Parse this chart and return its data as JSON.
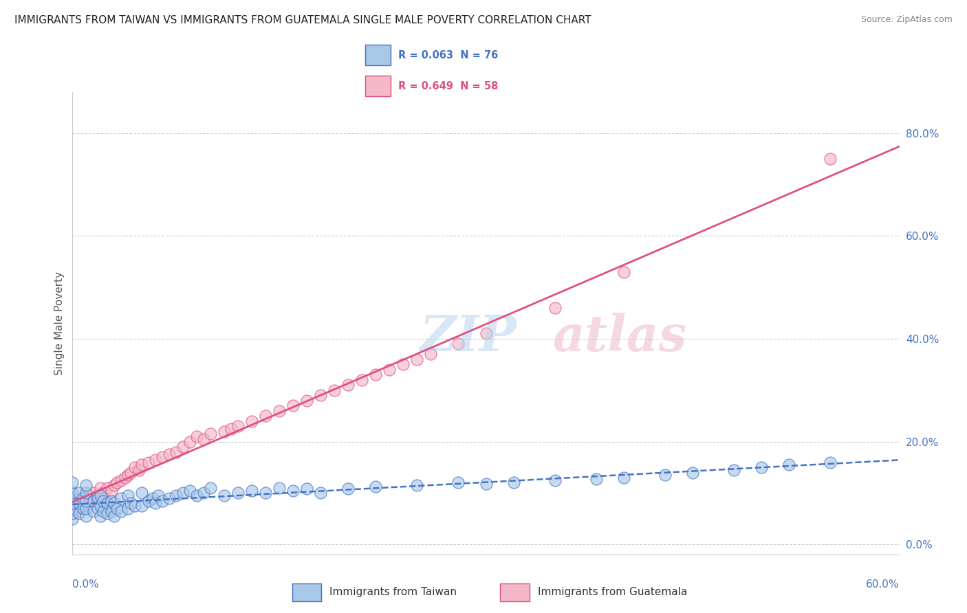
{
  "title": "IMMIGRANTS FROM TAIWAN VS IMMIGRANTS FROM GUATEMALA SINGLE MALE POVERTY CORRELATION CHART",
  "source": "Source: ZipAtlas.com",
  "ylabel": "Single Male Poverty",
  "ylabel_right_values": [
    0.0,
    0.2,
    0.4,
    0.6,
    0.8
  ],
  "xmin": 0.0,
  "xmax": 0.6,
  "ymin": -0.02,
  "ymax": 0.88,
  "taiwan_color": "#a8c8e8",
  "taiwan_color_dark": "#4472c4",
  "guatemala_color": "#f4b8c8",
  "guatemala_color_dark": "#e05080",
  "legend_label_taiwan": "R = 0.063  N = 76",
  "legend_label_guatemala": "R = 0.649  N = 58",
  "legend_bottom_taiwan": "Immigrants from Taiwan",
  "legend_bottom_guatemala": "Immigrants from Guatemala",
  "grid_color": "#cccccc",
  "background_color": "#ffffff",
  "taiwan_x": [
    0.0,
    0.0,
    0.0,
    0.0,
    0.0,
    0.0,
    0.0,
    0.005,
    0.005,
    0.005,
    0.008,
    0.008,
    0.01,
    0.01,
    0.01,
    0.01,
    0.01,
    0.015,
    0.015,
    0.018,
    0.018,
    0.02,
    0.02,
    0.02,
    0.022,
    0.022,
    0.025,
    0.025,
    0.028,
    0.028,
    0.03,
    0.03,
    0.032,
    0.035,
    0.035,
    0.04,
    0.04,
    0.042,
    0.045,
    0.05,
    0.05,
    0.055,
    0.058,
    0.06,
    0.062,
    0.065,
    0.07,
    0.075,
    0.08,
    0.085,
    0.09,
    0.095,
    0.1,
    0.11,
    0.12,
    0.13,
    0.14,
    0.15,
    0.16,
    0.17,
    0.18,
    0.2,
    0.22,
    0.25,
    0.28,
    0.3,
    0.32,
    0.35,
    0.38,
    0.4,
    0.43,
    0.45,
    0.48,
    0.5,
    0.52,
    0.55
  ],
  "taiwan_y": [
    0.05,
    0.06,
    0.07,
    0.08,
    0.09,
    0.1,
    0.12,
    0.06,
    0.08,
    0.1,
    0.07,
    0.09,
    0.055,
    0.07,
    0.085,
    0.1,
    0.115,
    0.065,
    0.085,
    0.07,
    0.09,
    0.055,
    0.075,
    0.095,
    0.065,
    0.085,
    0.06,
    0.08,
    0.065,
    0.085,
    0.055,
    0.08,
    0.07,
    0.065,
    0.09,
    0.07,
    0.095,
    0.08,
    0.075,
    0.075,
    0.1,
    0.085,
    0.09,
    0.08,
    0.095,
    0.085,
    0.09,
    0.095,
    0.1,
    0.105,
    0.095,
    0.1,
    0.11,
    0.095,
    0.1,
    0.105,
    0.1,
    0.11,
    0.105,
    0.108,
    0.1,
    0.108,
    0.112,
    0.115,
    0.12,
    0.118,
    0.12,
    0.125,
    0.128,
    0.13,
    0.135,
    0.14,
    0.145,
    0.15,
    0.155,
    0.16
  ],
  "guatemala_x": [
    0.0,
    0.0,
    0.002,
    0.005,
    0.005,
    0.008,
    0.01,
    0.01,
    0.012,
    0.015,
    0.015,
    0.018,
    0.02,
    0.02,
    0.022,
    0.025,
    0.028,
    0.03,
    0.032,
    0.035,
    0.038,
    0.04,
    0.042,
    0.045,
    0.048,
    0.05,
    0.055,
    0.06,
    0.065,
    0.07,
    0.075,
    0.08,
    0.085,
    0.09,
    0.095,
    0.1,
    0.11,
    0.115,
    0.12,
    0.13,
    0.14,
    0.15,
    0.16,
    0.17,
    0.18,
    0.19,
    0.2,
    0.21,
    0.22,
    0.23,
    0.24,
    0.25,
    0.26,
    0.28,
    0.3,
    0.35,
    0.4,
    0.55
  ],
  "guatemala_y": [
    0.06,
    0.08,
    0.07,
    0.065,
    0.09,
    0.08,
    0.075,
    0.095,
    0.085,
    0.09,
    0.1,
    0.095,
    0.085,
    0.11,
    0.1,
    0.11,
    0.105,
    0.115,
    0.12,
    0.125,
    0.13,
    0.135,
    0.14,
    0.15,
    0.145,
    0.155,
    0.16,
    0.165,
    0.17,
    0.175,
    0.18,
    0.19,
    0.2,
    0.21,
    0.205,
    0.215,
    0.22,
    0.225,
    0.23,
    0.24,
    0.25,
    0.26,
    0.27,
    0.28,
    0.29,
    0.3,
    0.31,
    0.32,
    0.33,
    0.34,
    0.35,
    0.36,
    0.37,
    0.39,
    0.41,
    0.46,
    0.53,
    0.75
  ]
}
